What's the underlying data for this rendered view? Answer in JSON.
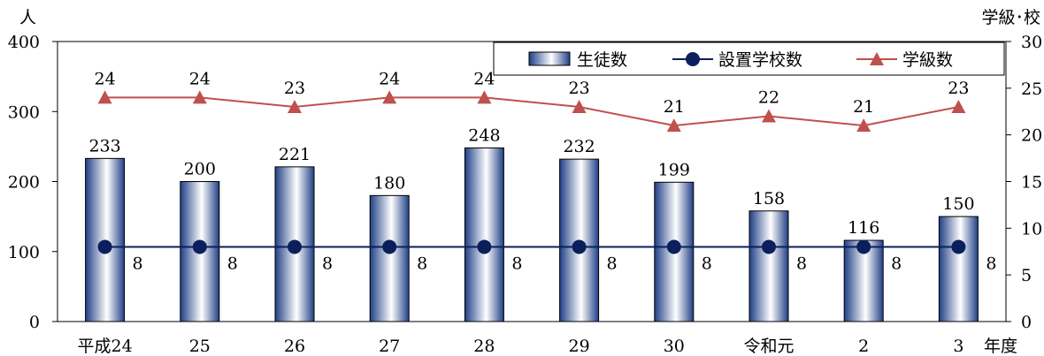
{
  "chart_data": {
    "type": "bar",
    "left_unit": "人",
    "right_unit": "学級･校",
    "x_unit": "年度",
    "categories": [
      "平成24",
      "25",
      "26",
      "27",
      "28",
      "29",
      "30",
      "令和元",
      "2",
      "3"
    ],
    "left_axis": {
      "min": 0,
      "max": 400,
      "ticks": [
        0,
        100,
        200,
        300,
        400
      ]
    },
    "right_axis": {
      "min": 0,
      "max": 30,
      "ticks": [
        0,
        5,
        10,
        15,
        20,
        25,
        30
      ]
    },
    "series": [
      {
        "name": "生徒数",
        "kind": "bar",
        "axis": "left",
        "values": [
          233,
          200,
          221,
          180,
          248,
          232,
          199,
          158,
          116,
          150
        ]
      },
      {
        "name": "設置学校数",
        "kind": "line",
        "axis": "right",
        "marker": "circle",
        "color": "#0b1f5c",
        "values": [
          8,
          8,
          8,
          8,
          8,
          8,
          8,
          8,
          8,
          8
        ]
      },
      {
        "name": "学級数",
        "kind": "line",
        "axis": "right",
        "marker": "triangle",
        "color": "#c0504d",
        "values": [
          24,
          24,
          23,
          24,
          24,
          23,
          21,
          22,
          21,
          23
        ]
      }
    ],
    "legend_position": "top-right",
    "grid": false
  }
}
